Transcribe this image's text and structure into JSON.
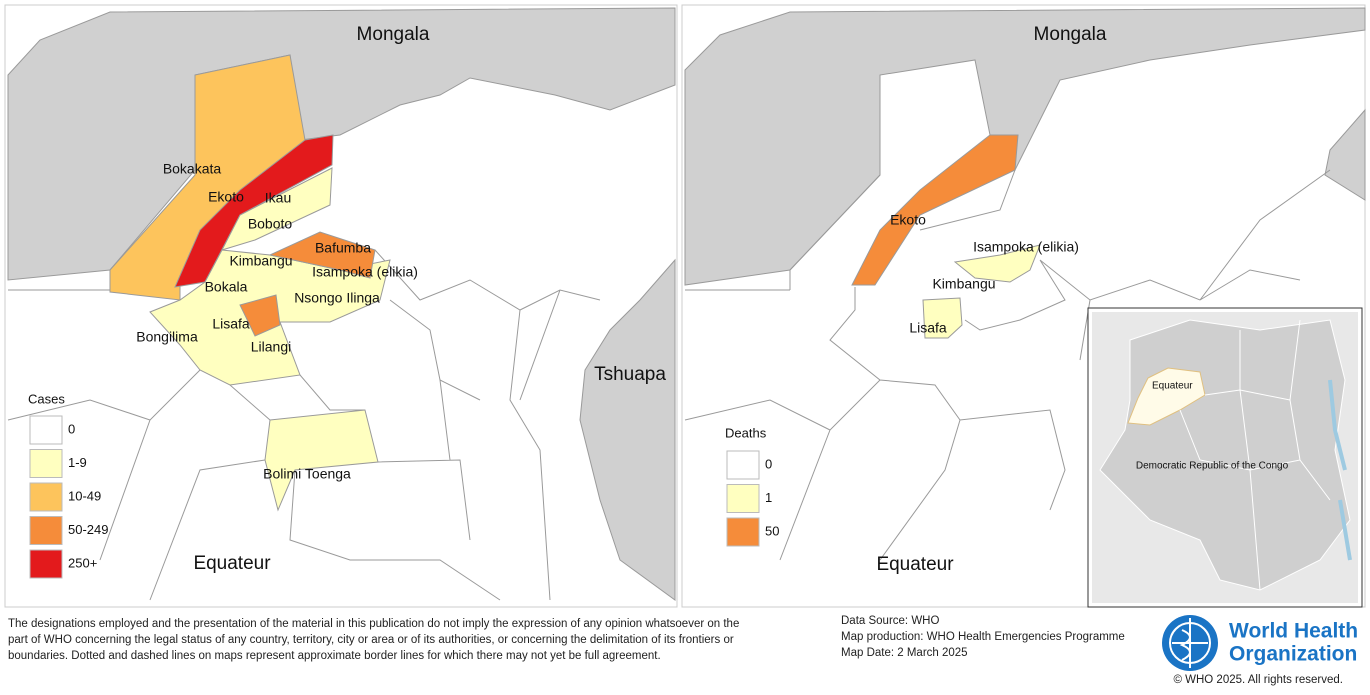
{
  "maps": [
    {
      "labels": [
        "Mongala",
        "Bokakata",
        "Ekoto",
        "Ikau",
        "Boboto",
        "Bafumba",
        "Kimbangu",
        "Isampoka (elikia)",
        "Bokala",
        "Nsongo Ilinga",
        "Lisafa",
        "Bongilima",
        "Lilangi",
        "Tshuapa",
        "Bolimi Toenga",
        "Equateur"
      ],
      "legend": {
        "title": "Cases",
        "items": [
          {
            "label": "0",
            "color": "#ffffff"
          },
          {
            "label": "1-9",
            "color": "#ffffc0"
          },
          {
            "label": "10-49",
            "color": "#fdc45c"
          },
          {
            "label": "50-249",
            "color": "#f58c3a"
          },
          {
            "label": "250+",
            "color": "#e31a1c"
          }
        ]
      }
    },
    {
      "labels": [
        "Mongala",
        "Ekoto",
        "Isampoka (elikia)",
        "Kimbangu",
        "Lisafa",
        "Equateur"
      ],
      "legend": {
        "title": "Deaths",
        "items": [
          {
            "label": "0",
            "color": "#ffffff"
          },
          {
            "label": "1",
            "color": "#ffffc0"
          },
          {
            "label": "50",
            "color": "#f58c3a"
          }
        ]
      }
    }
  ],
  "inset": {
    "labels": [
      "Equateur",
      "Democratic Republic of the Congo"
    ]
  },
  "footer": {
    "disclaimer": [
      "The designations employed and the presentation of the material in this publication do not imply the expression of any opinion whatsoever on the",
      "part of WHO concerning the legal status of any country, territory, city or area or of its authorities, or concerning the delimitation of its frontiers or",
      "boundaries. Dotted and dashed lines on maps represent approximate border lines for which there may not yet be full agreement."
    ],
    "source": [
      "Data Source: WHO",
      "Map production: WHO Health Emergencies Programme",
      "Map Date: 2 March 2025"
    ],
    "logo": [
      "World Health",
      "Organization"
    ],
    "copyright": "© WHO 2025. All rights reserved."
  }
}
